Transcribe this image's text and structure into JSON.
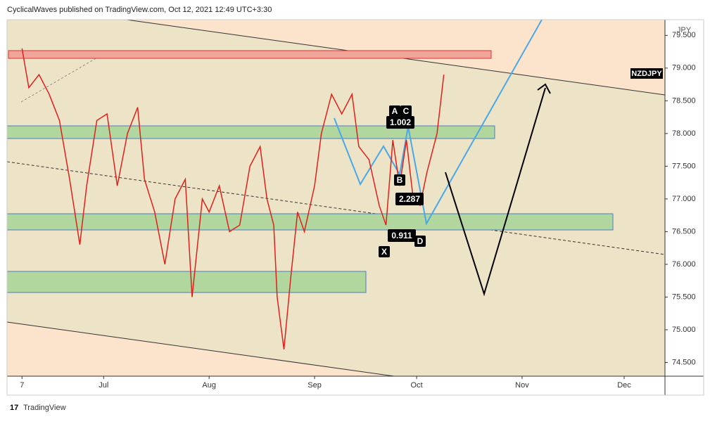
{
  "header": {
    "text": "CyclicalWaves published on TradingView.com, Oct 12, 2021 12:49 UTC+3:30"
  },
  "chart_data": {
    "type": "line",
    "symbol": "NZDJPY",
    "currency": "JPY",
    "x": [
      0,
      2,
      5,
      8,
      11,
      14,
      17,
      19,
      22,
      25,
      28,
      31,
      34,
      36,
      39,
      42,
      45,
      48,
      50,
      53,
      55,
      58,
      61,
      64,
      67,
      70,
      72,
      74,
      75,
      77,
      79,
      81,
      83,
      86,
      88,
      91,
      94,
      97,
      99,
      102,
      105,
      107,
      109,
      111,
      113,
      115,
      117,
      119,
      122,
      124
    ],
    "values": [
      79.3,
      78.7,
      78.9,
      78.6,
      78.2,
      77.3,
      76.3,
      77.2,
      78.2,
      78.3,
      77.2,
      78.0,
      78.4,
      77.3,
      76.8,
      76.0,
      77.0,
      77.3,
      75.5,
      77.0,
      76.8,
      77.2,
      76.5,
      76.6,
      77.5,
      77.8,
      77.0,
      76.6,
      75.5,
      74.7,
      75.8,
      76.8,
      76.5,
      77.2,
      78.0,
      78.6,
      78.3,
      78.6,
      77.8,
      77.6,
      76.9,
      76.6,
      77.9,
      77.2,
      77.9,
      77.0,
      76.9,
      77.4,
      78.0,
      78.9
    ],
    "color": "#e0201c",
    "xlim": [
      -4.4,
      189
    ],
    "xticks": [
      {
        "value": 0,
        "label": "7"
      },
      {
        "value": 24,
        "label": "Jul"
      },
      {
        "value": 55,
        "label": "Aug"
      },
      {
        "value": 86,
        "label": "Sep"
      },
      {
        "value": 116,
        "label": "Oct"
      },
      {
        "value": 147,
        "label": "Nov"
      },
      {
        "value": 177,
        "label": "Dec"
      }
    ],
    "ylim": [
      74.29,
      79.74
    ],
    "yticks": [
      {
        "value": 74.5,
        "label": "74.500"
      },
      {
        "value": 75,
        "label": "75.000"
      },
      {
        "value": 75.5,
        "label": "75.500"
      },
      {
        "value": 76,
        "label": "76.000"
      },
      {
        "value": 76.5,
        "label": "76.500"
      },
      {
        "value": 77,
        "label": "77.000"
      },
      {
        "value": 77.5,
        "label": "77.500"
      },
      {
        "value": 78,
        "label": "78.000"
      },
      {
        "value": 78.5,
        "label": "78.500"
      },
      {
        "value": 79,
        "label": "79.000"
      },
      {
        "value": 79.5,
        "label": "79.500"
      }
    ],
    "pattern_labels": [
      "X",
      "A",
      "B",
      "C",
      "D"
    ],
    "ratios": [
      "1.002",
      "2.287",
      "0.911"
    ]
  },
  "footer": {
    "brand": "TradingView"
  }
}
